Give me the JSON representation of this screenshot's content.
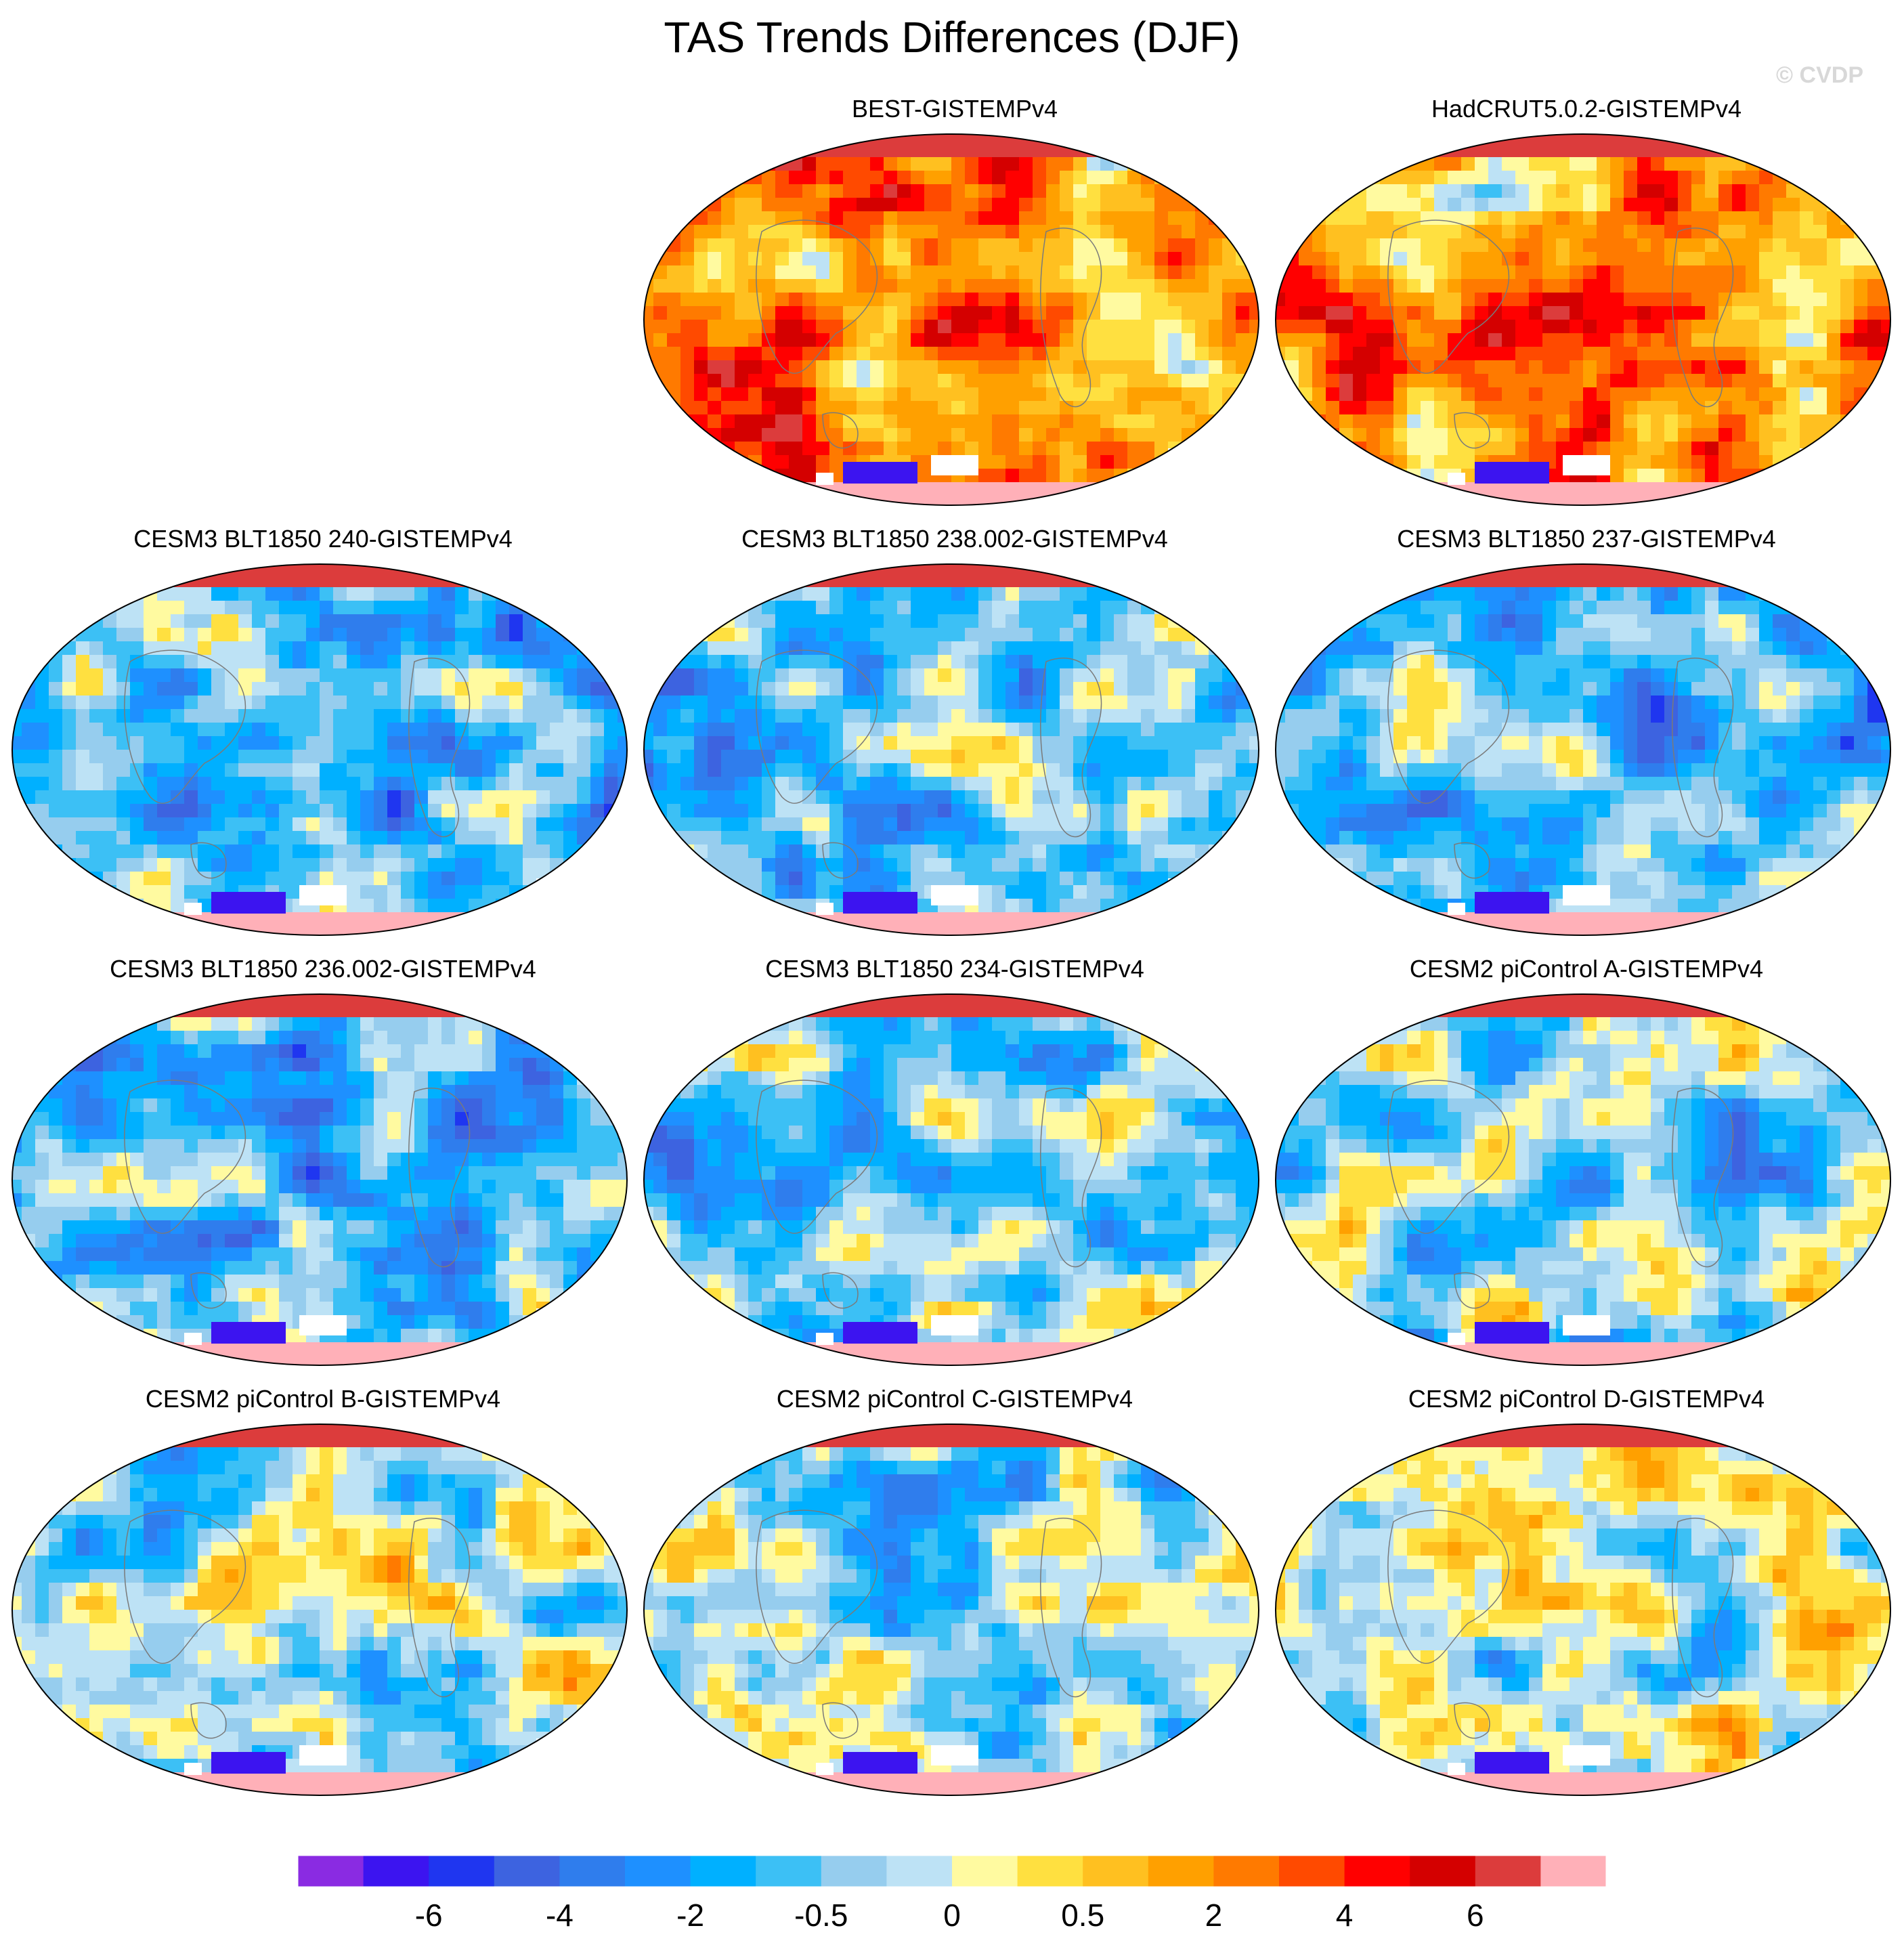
{
  "title": "TAS Trends Differences (DJF)",
  "watermark": "© CVDP",
  "chart_data": {
    "type": "heatmap",
    "map_projection": "robinson-like global maps",
    "season": "DJF",
    "panels": [
      {
        "id": "best",
        "title": "BEST-GISTEMPv4",
        "pattern": "warm"
      },
      {
        "id": "hadcrut",
        "title": "HadCRUT5.0.2-GISTEMPv4",
        "pattern": "warm2"
      },
      {
        "id": "blt240",
        "title": "CESM3 BLT1850 240-GISTEMPv4",
        "pattern": "cool"
      },
      {
        "id": "blt238",
        "title": "CESM3 BLT1850 238.002-GISTEMPv4",
        "pattern": "cool-mixed"
      },
      {
        "id": "blt237",
        "title": "CESM3 BLT1850 237-GISTEMPv4",
        "pattern": "cool"
      },
      {
        "id": "blt236",
        "title": "CESM3 BLT1850 236.002-GISTEMPv4",
        "pattern": "cool"
      },
      {
        "id": "blt234",
        "title": "CESM3 BLT1850 234-GISTEMPv4",
        "pattern": "cool-mixed"
      },
      {
        "id": "picA",
        "title": "CESM2 piControl A-GISTEMPv4",
        "pattern": "cool-mixed"
      },
      {
        "id": "picB",
        "title": "CESM2 piControl B-GISTEMPv4",
        "pattern": "mixed"
      },
      {
        "id": "picC",
        "title": "CESM2 piControl C-GISTEMPv4",
        "pattern": "mixed"
      },
      {
        "id": "picD",
        "title": "CESM2 piControl D-GISTEMPv4",
        "pattern": "mixed-warm"
      }
    ],
    "colorbar": {
      "colors": [
        "#8a2be2",
        "#3c14f0",
        "#1f36f0",
        "#3d63e0",
        "#2f7ded",
        "#1e90ff",
        "#00b0ff",
        "#3cc0f5",
        "#96cdee",
        "#bde2f5",
        "#fffaa0",
        "#ffe040",
        "#ffc020",
        "#ffa000",
        "#ff7a00",
        "#ff4a00",
        "#ff0000",
        "#d40000",
        "#dc3c3c",
        "#ffb0b8"
      ],
      "tick_labels": [
        "-6",
        "-4",
        "-2",
        "-0.5",
        "0",
        "0.5",
        "2",
        "4",
        "6"
      ],
      "tick_positions_boundary_index": [
        2,
        4,
        6,
        8,
        10,
        12,
        14,
        16,
        18
      ]
    }
  }
}
